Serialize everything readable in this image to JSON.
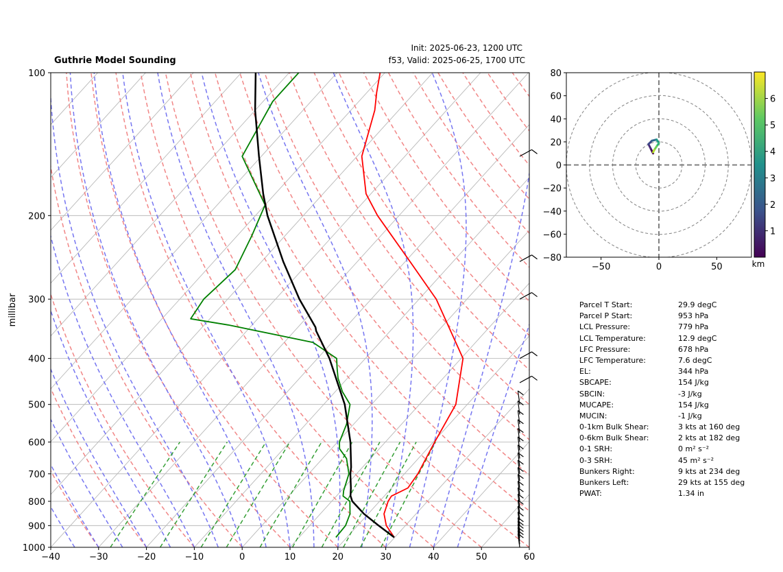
{
  "header": {
    "title": "Guthrie Model Sounding",
    "init": "Init: 2025-06-23, 1200 UTC",
    "valid": "f53, Valid: 2025-06-25, 1700 UTC"
  },
  "chart_data": [
    {
      "type": "line",
      "kind": "skew-T log-P",
      "ylabel": "millibar",
      "ylim": [
        1000,
        100
      ],
      "xlim": [
        -40,
        60
      ],
      "y_scale": "log",
      "x_ticks": [
        -40,
        -30,
        -20,
        -10,
        0,
        10,
        20,
        30,
        40,
        50,
        60
      ],
      "y_ticks": [
        100,
        200,
        300,
        400,
        500,
        600,
        700,
        800,
        900,
        1000
      ],
      "series": [
        {
          "color": "#ff0000",
          "points": [
            [
              953,
              29.9
            ],
            [
              900,
              26
            ],
            [
              850,
              23.3
            ],
            [
              800,
              21.8
            ],
            [
              780,
              21.5
            ],
            [
              750,
              23.4
            ],
            [
              700,
              22.8
            ],
            [
              600,
              20.3
            ],
            [
              500,
              17.6
            ],
            [
              400,
              10.4
            ],
            [
              300,
              -6.4
            ],
            [
              250,
              -19
            ],
            [
              200,
              -34.5
            ],
            [
              180,
              -41
            ],
            [
              150,
              -49
            ],
            [
              120,
              -55
            ],
            [
              110,
              -58
            ],
            [
              100,
              -61
            ]
          ]
        },
        {
          "color": "#008000",
          "points": [
            [
              953,
              17.7
            ],
            [
              900,
              17.5
            ],
            [
              850,
              16.2
            ],
            [
              800,
              13.8
            ],
            [
              780,
              11.4
            ],
            [
              760,
              10.5
            ],
            [
              700,
              8.4
            ],
            [
              650,
              5
            ],
            [
              620,
              1.7
            ],
            [
              600,
              0.4
            ],
            [
              550,
              -1.5
            ],
            [
              500,
              -4.5
            ],
            [
              470,
              -8.5
            ],
            [
              440,
              -12
            ],
            [
              420,
              -14
            ],
            [
              400,
              -16
            ],
            [
              370,
              -24
            ],
            [
              340,
              -45
            ],
            [
              330,
              -54
            ],
            [
              300,
              -55
            ],
            [
              260,
              -54
            ],
            [
              220,
              -57
            ],
            [
              190,
              -60
            ],
            [
              150,
              -74
            ],
            [
              115,
              -78
            ],
            [
              100,
              -78
            ]
          ]
        },
        {
          "color": "#000000",
          "points": [
            [
              953,
              29.9
            ],
            [
              900,
              24.4
            ],
            [
              850,
              19.1
            ],
            [
              800,
              14.3
            ],
            [
              779,
              12.9
            ],
            [
              750,
              11.5
            ],
            [
              700,
              8.7
            ],
            [
              678,
              7.6
            ],
            [
              600,
              2.7
            ],
            [
              500,
              -5.6
            ],
            [
              400,
              -17.5
            ],
            [
              350,
              -25.5
            ],
            [
              344,
              -26.3
            ],
            [
              300,
              -35
            ],
            [
              250,
              -45.5
            ],
            [
              200,
              -57.5
            ],
            [
              180,
              -62.5
            ],
            [
              150,
              -70.5
            ],
            [
              120,
              -80
            ],
            [
              100,
              -87
            ]
          ]
        }
      ],
      "wind_barbs_levels_hpa": [
        1000,
        985,
        970,
        955,
        940,
        925,
        900,
        875,
        850,
        825,
        800,
        775,
        750,
        725,
        700,
        675,
        650,
        625,
        600,
        575,
        550,
        525,
        500,
        450,
        400,
        300,
        250,
        150
      ]
    },
    {
      "type": "line",
      "kind": "hodograph",
      "xlim": [
        -80,
        80
      ],
      "ylim": [
        -80,
        80
      ],
      "x_ticks": [
        -50,
        0,
        50
      ],
      "y_ticks": [
        -80,
        -60,
        -40,
        -20,
        0,
        20,
        40,
        60,
        80
      ],
      "colorbar": {
        "label": "km",
        "ticks": [
          1,
          2,
          3,
          4,
          5,
          6
        ],
        "range": [
          0,
          7
        ],
        "colormap": "viridis"
      },
      "points": [
        [
          -5,
          10,
          0.1
        ],
        [
          -7,
          14,
          0.8
        ],
        [
          -9,
          18,
          1.6
        ],
        [
          -6,
          21,
          2.4
        ],
        [
          -2,
          22,
          3.2
        ],
        [
          0,
          19,
          4.0
        ],
        [
          -2,
          16,
          4.8
        ],
        [
          -4,
          13,
          5.6
        ],
        [
          -5,
          11,
          6.5
        ]
      ]
    }
  ],
  "parameters": [
    {
      "label": "Parcel T Start:",
      "value": "29.9 degC"
    },
    {
      "label": "Parcel P Start:",
      "value": "953 hPa"
    },
    {
      "label": "LCL Pressure:",
      "value": "779 hPa"
    },
    {
      "label": "LCL Temperature:",
      "value": "12.9 degC"
    },
    {
      "label": "LFC Pressure:",
      "value": "678 hPa"
    },
    {
      "label": "LFC Temperature:",
      "value": "7.6 degC"
    },
    {
      "label": "EL:",
      "value": "344 hPa"
    },
    {
      "label": "SBCAPE:",
      "value": "154 J/kg"
    },
    {
      "label": "SBCIN:",
      "value": "-3 J/kg"
    },
    {
      "label": "MUCAPE:",
      "value": "154 J/kg"
    },
    {
      "label": "MUCIN:",
      "value": "-1 J/kg"
    },
    {
      "label": "0-1km Bulk Shear:",
      "value": "3 kts at 160 deg"
    },
    {
      "label": "0-6km Bulk Shear:",
      "value": "2 kts at 182 deg"
    },
    {
      "label": "0-1 SRH:",
      "value": "0 m² s⁻²"
    },
    {
      "label": "0-3 SRH:",
      "value": "45 m² s⁻²"
    },
    {
      "label": "Bunkers Right:",
      "value": "9 kts at 234 deg"
    },
    {
      "label": "Bunkers Left:",
      "value": "29 kts at 155 deg"
    },
    {
      "label": "PWAT:",
      "value": "1.34 in"
    }
  ]
}
